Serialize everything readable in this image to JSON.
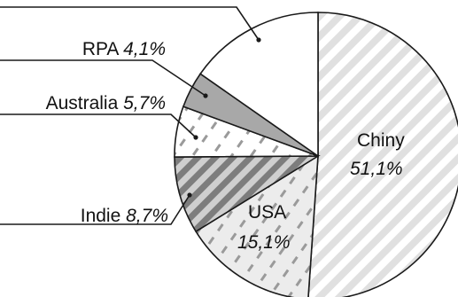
{
  "chart_data": {
    "type": "pie",
    "slices": [
      {
        "name": "Chiny",
        "value": 51.1,
        "value_label": "51,1%",
        "fill": "#e3e3e3",
        "pattern": "diagonal-stripes-white"
      },
      {
        "name": "USA",
        "value": 15.1,
        "value_label": "15,1%",
        "fill": "#ececec",
        "pattern": "dashed-diagonal"
      },
      {
        "name": "Indie",
        "value": 8.7,
        "value_label": "8,7%",
        "fill": "#9c9c9c",
        "pattern": "diagonal-stripes-dark"
      },
      {
        "name": "Australia",
        "value": 5.7,
        "value_label": "5,7%",
        "fill": "#ffffff",
        "pattern": "dashed-diagonal"
      },
      {
        "name": "RPA",
        "value": 4.1,
        "value_label": "4,1%",
        "fill": "#a8a8a8",
        "pattern": "solid"
      },
      {
        "name": "",
        "value": 15.3,
        "value_label": "",
        "fill": "#ffffff",
        "pattern": "solid"
      }
    ],
    "start_angle_deg": 0,
    "direction": "clockwise",
    "colors": {
      "stroke": "#1a1a1a",
      "text": "#111111"
    }
  }
}
